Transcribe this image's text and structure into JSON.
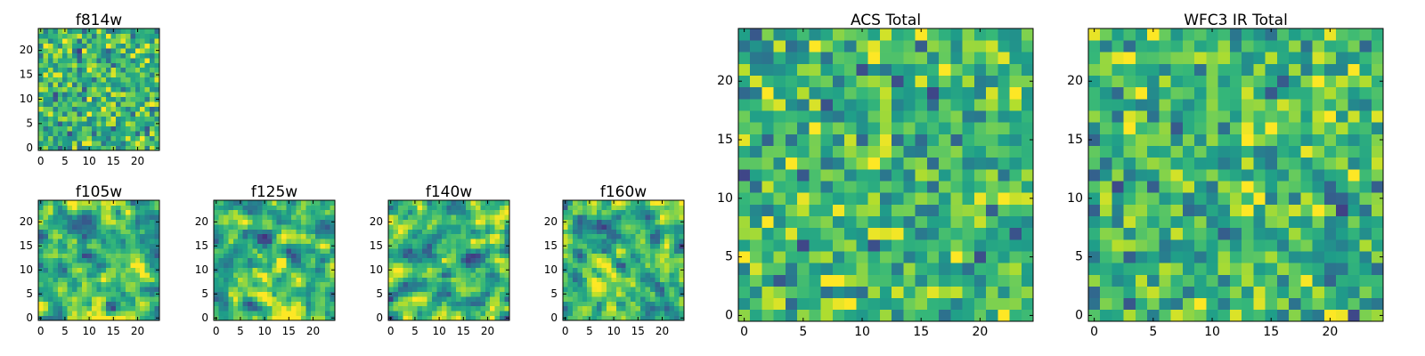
{
  "chart_data": [
    {
      "type": "heatmap",
      "title": "f814w",
      "grid_size": 25,
      "colormap": "viridis",
      "xticks": [
        0,
        5,
        10,
        15,
        20
      ],
      "yticks": [
        0,
        5,
        10,
        15,
        20
      ],
      "texture": "noise",
      "seed": 101
    },
    {
      "type": "heatmap",
      "title": "f105w",
      "grid_size": 25,
      "colormap": "viridis",
      "xticks": [
        0,
        5,
        10,
        15,
        20
      ],
      "yticks": [
        0,
        5,
        10,
        15,
        20
      ],
      "texture": "smooth",
      "seed": 202
    },
    {
      "type": "heatmap",
      "title": "f125w",
      "grid_size": 25,
      "colormap": "viridis",
      "xticks": [
        0,
        5,
        10,
        15,
        20
      ],
      "yticks": [
        0,
        5,
        10,
        15,
        20
      ],
      "texture": "smooth",
      "seed": 303
    },
    {
      "type": "heatmap",
      "title": "f140w",
      "grid_size": 25,
      "colormap": "viridis",
      "xticks": [
        0,
        5,
        10,
        15,
        20
      ],
      "yticks": [
        0,
        5,
        10,
        15,
        20
      ],
      "texture": "smooth",
      "seed": 404
    },
    {
      "type": "heatmap",
      "title": "f160w",
      "grid_size": 25,
      "colormap": "viridis",
      "xticks": [
        0,
        5,
        10,
        15,
        20
      ],
      "yticks": [
        0,
        5,
        10,
        15,
        20
      ],
      "texture": "smooth",
      "seed": 505
    },
    {
      "type": "heatmap",
      "title": "ACS Total",
      "grid_size": 25,
      "colormap": "viridis",
      "xticks": [
        0,
        5,
        10,
        15,
        20
      ],
      "yticks": [
        0,
        5,
        10,
        15,
        20
      ],
      "texture": "noise",
      "seed": 606
    },
    {
      "type": "heatmap",
      "title": "WFC3 IR Total",
      "grid_size": 25,
      "colormap": "viridis",
      "xticks": [
        0,
        5,
        10,
        15,
        20
      ],
      "yticks": [
        0,
        5,
        10,
        15,
        20
      ],
      "texture": "noise",
      "seed": 707
    }
  ]
}
